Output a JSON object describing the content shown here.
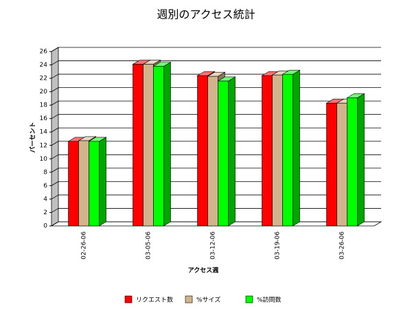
{
  "chart_data": {
    "type": "bar3d",
    "title": "週別のアクセス統計",
    "x_label": "アクセス週",
    "y_label": "パーセント",
    "categories": [
      "02-26-06",
      "03-05-06",
      "03-12-06",
      "03-19-06",
      "03-26-06"
    ],
    "series": [
      {
        "name": "リクエスト数",
        "color": "#ff0000",
        "values": [
          12.6,
          24.1,
          22.4,
          22.4,
          18.3
        ]
      },
      {
        "name": "%サイズ",
        "color": "#d2b48c",
        "values": [
          12.7,
          24.1,
          22.3,
          22.5,
          18.3
        ]
      },
      {
        "name": "%訪問数",
        "color": "#00ff00",
        "values": [
          12.6,
          23.8,
          21.6,
          22.6,
          19.1
        ]
      }
    ],
    "ylim": [
      0,
      26
    ],
    "yticks": [
      0,
      2,
      4,
      6,
      8,
      10,
      12,
      14,
      16,
      18,
      20,
      22,
      24,
      26
    ],
    "grid": true
  }
}
